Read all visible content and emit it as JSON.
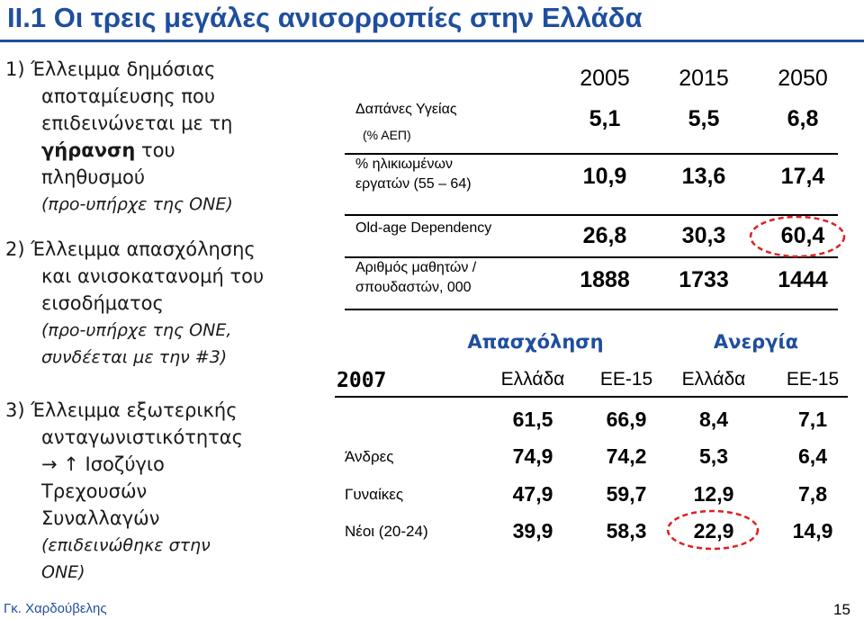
{
  "header": {
    "title": "II.1 Οι τρεις μεγάλες ανισορροπίες στην Ελλάδα"
  },
  "list": [
    {
      "lines": [
        "1) Έλλειμμα δημόσιας",
        "αποταμίευσης που",
        "επιδεινώνεται με τη"
      ],
      "bold": "γήρανση",
      "after": " του",
      "last": "πληθυσμού",
      "note": [
        "(προ-υπήρχε της ΟΝΕ)"
      ]
    },
    {
      "lines": [
        "2) Έλλειμμα απασχόλησης",
        "και ανισοκατανομή του",
        "εισοδήματος"
      ],
      "note": [
        "(προ-υπήρχε της ΟΝΕ,",
        "συνδέεται με την #3)"
      ]
    },
    {
      "lines": [
        "3) Έλλειμμα εξωτερικής",
        "ανταγωνιστικότητας",
        "→ ↑ Ισοζύγιο",
        "Τρεχουσών",
        "Συναλλαγών"
      ],
      "note": [
        "(επιδεινώθηκε στην",
        "ΟΝΕ)"
      ]
    }
  ],
  "table1": {
    "columns": [
      "2005",
      "2015",
      "2050"
    ],
    "rows": [
      {
        "label": [
          "Δαπάνες Υγείας",
          "(% ΑΕΠ)"
        ],
        "cells": [
          "5,1",
          "5,5",
          "6,8"
        ]
      },
      {
        "label": [
          "% ηλικιωμένων",
          "εργατών (55 – 64)"
        ],
        "cells": [
          "10,9",
          "13,6",
          "17,4"
        ]
      },
      {
        "label": [
          "Old-age Dependency"
        ],
        "cells": [
          "26,8",
          "30,3",
          "60,4"
        ]
      },
      {
        "label": [
          "Αριθμός μαθητών /",
          "σπουδαστών, 000"
        ],
        "cells": [
          "1888",
          "1733",
          "1444"
        ]
      }
    ]
  },
  "table2": {
    "groups": [
      "Απασχόληση",
      "Ανεργία"
    ],
    "year": "2007",
    "columns": [
      "Ελλάδα",
      "ΕΕ-15",
      "Ελλάδα",
      "ΕΕ-15"
    ],
    "rows": [
      {
        "cells": [
          "61,5",
          "66,9",
          "8,4",
          "7,1"
        ]
      },
      {
        "label": "Άνδρες",
        "cells": [
          "74,9",
          "74,2",
          "5,3",
          "6,4"
        ]
      },
      {
        "label": "Γυναίκες",
        "cells": [
          "47,9",
          "59,7",
          "12,9",
          "7,8"
        ]
      },
      {
        "label": "Νέοι (20-24)",
        "cells": [
          "39,9",
          "58,3",
          "22,9",
          "14,9"
        ]
      }
    ]
  },
  "footer": {
    "author": "Γκ. Χαρδούβελης",
    "page": "15"
  }
}
